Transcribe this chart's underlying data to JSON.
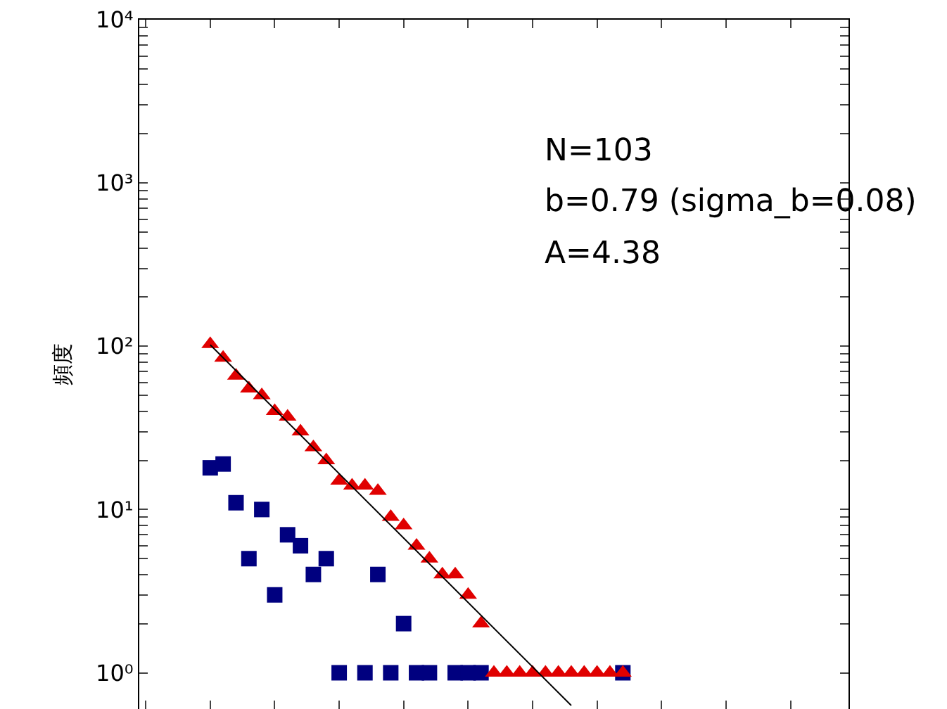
{
  "chart_data": {
    "type": "scatter",
    "ylabel": "頻度",
    "log": "y",
    "grid": false,
    "legend": false,
    "tick_labels": "y",
    "categories": [
      null,
      null,
      null,
      null,
      null,
      null,
      null,
      null,
      null,
      null,
      null,
      null,
      null,
      null,
      null,
      null,
      null,
      null,
      null,
      null,
      null,
      null,
      null,
      null,
      null,
      null,
      null,
      null,
      null,
      null,
      null,
      null,
      null,
      null,
      null,
      null,
      null,
      null,
      null,
      null,
      null,
      null,
      null,
      null,
      null,
      null,
      null,
      null,
      null,
      null,
      null,
      null,
      null,
      null,
      null
    ],
    "ylim": [
      0.6,
      10000
    ],
    "yticks": [
      {
        "value": 1,
        "label": "10⁰"
      },
      {
        "value": 2,
        "label": null
      },
      {
        "value": 3,
        "label": null
      },
      {
        "value": 4,
        "label": null
      },
      {
        "value": 5,
        "label": null
      },
      {
        "value": 6,
        "label": null
      },
      {
        "value": 7,
        "label": null
      },
      {
        "value": 8,
        "label": null
      },
      {
        "value": 9,
        "label": null
      },
      {
        "value": 10,
        "label": "10¹"
      },
      {
        "value": 20,
        "label": null
      },
      {
        "value": 30,
        "label": null
      },
      {
        "value": 40,
        "label": null
      },
      {
        "value": 50,
        "label": null
      },
      {
        "value": 60,
        "label": null
      },
      {
        "value": 70,
        "label": null
      },
      {
        "value": 80,
        "label": null
      },
      {
        "value": 90,
        "label": null
      },
      {
        "value": 100,
        "label": "10²"
      },
      {
        "value": 200,
        "label": null
      },
      {
        "value": 300,
        "label": null
      },
      {
        "value": 400,
        "label": null
      },
      {
        "value": 500,
        "label": null
      },
      {
        "value": 600,
        "label": null
      },
      {
        "value": 700,
        "label": null
      },
      {
        "value": 800,
        "label": null
      },
      {
        "value": 900,
        "label": null
      },
      {
        "value": 1000,
        "label": "10³"
      },
      {
        "value": 2000,
        "label": null
      },
      {
        "value": 3000,
        "label": null
      },
      {
        "value": 4000,
        "label": null
      },
      {
        "value": 5000,
        "label": null
      },
      {
        "value": 6000,
        "label": null
      },
      {
        "value": 7000,
        "label": null
      },
      {
        "value": 8000,
        "label": null
      },
      {
        "value": 9000,
        "label": null
      },
      {
        "value": 10000,
        "label": "10⁴"
      }
    ],
    "series": [
      {
        "type": "scatter",
        "marker": "square",
        "color": "#00007f",
        "values": [
          null,
          null,
          null,
          null,
          null,
          18,
          19,
          11,
          5,
          10,
          3,
          7,
          6,
          4,
          5,
          1,
          null,
          1,
          4,
          1,
          2,
          1,
          1,
          null,
          1,
          1,
          1,
          null,
          null,
          null,
          null,
          null,
          null,
          null,
          null,
          null,
          null,
          1,
          null,
          null,
          null,
          null,
          null,
          null,
          null,
          null,
          null,
          null,
          null,
          null,
          null,
          null,
          null,
          null,
          null
        ]
      },
      {
        "type": "scatter",
        "marker": "triangle",
        "color": "#e00000",
        "values": [
          null,
          null,
          null,
          null,
          null,
          103,
          85,
          66,
          55,
          50,
          40,
          37,
          30,
          24,
          20,
          15,
          14,
          14,
          13,
          9,
          8,
          6,
          5,
          4,
          4,
          3,
          2,
          1,
          1,
          1,
          1,
          1,
          1,
          1,
          1,
          1,
          1,
          1,
          null,
          null,
          null,
          null,
          null,
          null,
          null,
          null,
          null,
          null,
          null,
          null,
          null,
          null,
          null,
          null,
          null
        ]
      },
      {
        "type": "line",
        "marker": "none",
        "color": "#000000",
        "values": [
          null,
          null,
          null,
          null,
          null,
          102,
          null,
          null,
          null,
          null,
          null,
          null,
          null,
          null,
          null,
          null,
          null,
          null,
          null,
          null,
          null,
          null,
          null,
          null,
          null,
          null,
          null,
          null,
          null,
          null,
          null,
          null,
          null,
          0.63,
          null,
          null,
          null,
          null,
          null,
          null,
          null,
          null,
          null,
          null,
          null,
          null,
          null,
          null,
          null,
          null,
          null,
          null,
          null,
          null,
          null
        ]
      }
    ],
    "annotations": [
      "N=103",
      "b=0.79 (sigma_b=0.08)",
      "A=4.38"
    ]
  }
}
